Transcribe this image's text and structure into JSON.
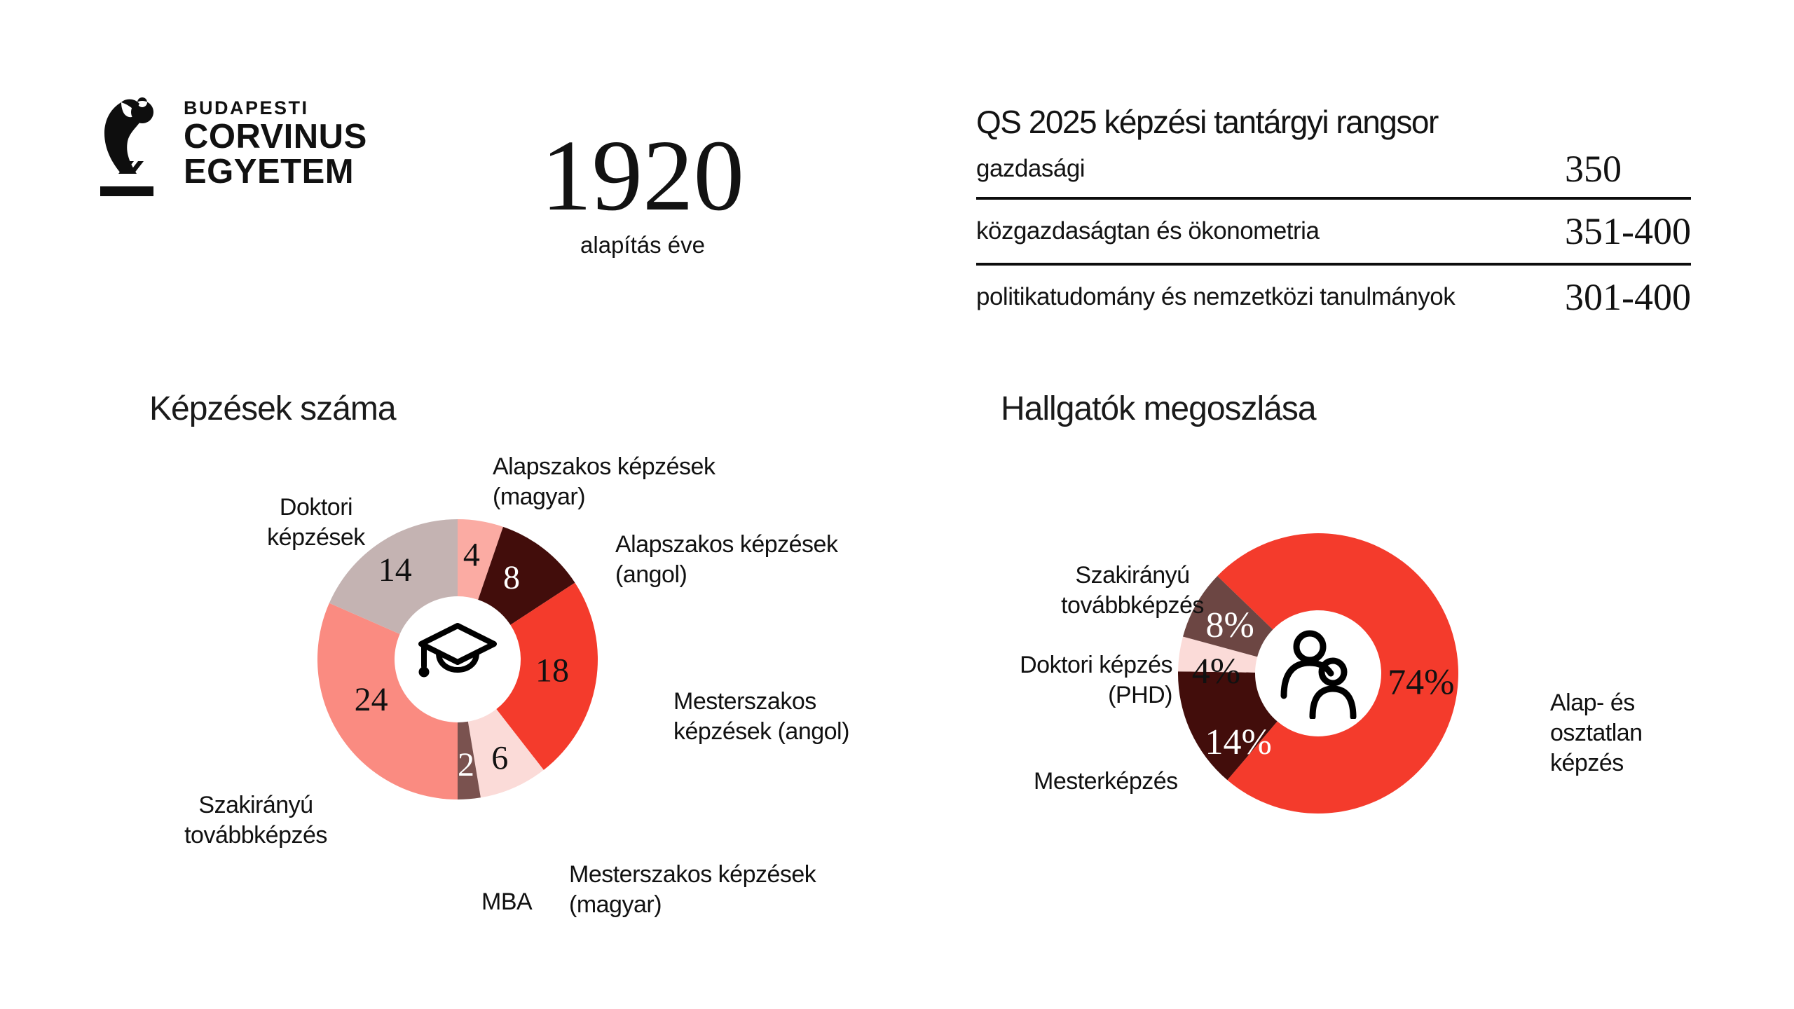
{
  "brand": {
    "word1": "BUDAPESTI",
    "word2": "CORVINUS",
    "word3": "EGYETEM"
  },
  "founding": {
    "year": "1920",
    "caption": "alapítás éve"
  },
  "qs_ranking": {
    "title": "QS 2025 képzési tantárgyi rangsor",
    "rows": [
      {
        "label": "gazdasági",
        "value": "350"
      },
      {
        "label": "közgazdaságtan és ökonometria",
        "value": "351-400"
      },
      {
        "label": "politikatudomány és nemzetközi tanulmányok",
        "value": "301-400"
      }
    ]
  },
  "colors": {
    "red": "#F43B2C",
    "dark_maroon": "#420D0B",
    "pale_pink": "#FBDBD8",
    "light_salmon": "#FBABA3",
    "salmon": "#FA8B81",
    "taupe": "#C4B3B2",
    "mba_brown": "#7A524F",
    "dark_brown": "#6C4643",
    "text": "#111111",
    "white": "#FFFFFF"
  },
  "chart_data": [
    {
      "type": "pie",
      "subtype": "donut",
      "title": "Képzések száma",
      "center_icon": "graduation-cap",
      "start_angle": 0,
      "direction": "clockwise",
      "total": 76,
      "segments": [
        {
          "label": "Alapszakos képzések (magyar)",
          "label_lines": [
            "Alapszakos képzések",
            "(magyar)"
          ],
          "value": 4,
          "display": "4",
          "color": "#FBABA3",
          "value_color": "#111111"
        },
        {
          "label": "Alapszakos képzések (angol)",
          "label_lines": [
            "Alapszakos képzések",
            "(angol)"
          ],
          "value": 8,
          "display": "8",
          "color": "#420D0B",
          "value_color": "#FFFFFF"
        },
        {
          "label": "Mesterszakos képzések (angol)",
          "label_lines": [
            "Mesterszakos",
            "képzések (angol)"
          ],
          "value": 18,
          "display": "18",
          "color": "#F43B2C",
          "value_color": "#111111"
        },
        {
          "label": "Mesterszakos képzések (magyar)",
          "label_lines": [
            "Mesterszakos képzések",
            "(magyar)"
          ],
          "value": 6,
          "display": "6",
          "color": "#FBDBD8",
          "value_color": "#111111"
        },
        {
          "label": "MBA",
          "label_lines": [
            "MBA"
          ],
          "value": 2,
          "display": "2",
          "color": "#7A524F",
          "value_color": "#FFFFFF"
        },
        {
          "label": "Szakirányú továbbképzés",
          "label_lines": [
            "Szakirányú",
            "továbbképzés"
          ],
          "value": 24,
          "display": "24",
          "color": "#FA8B81",
          "value_color": "#111111"
        },
        {
          "label": "Doktori képzések",
          "label_lines": [
            "Doktori",
            "képzések"
          ],
          "value": 14,
          "display": "14",
          "color": "#C4B3B2",
          "value_color": "#111111"
        }
      ]
    },
    {
      "type": "pie",
      "subtype": "donut",
      "title": "Hallgatók megoszlása",
      "center_icon": "people",
      "start_angle": -46,
      "direction": "clockwise",
      "total": 100,
      "segments": [
        {
          "label": "Alap- és osztatlan képzés",
          "label_lines": [
            "Alap- és",
            "osztatlan",
            "képzés"
          ],
          "value": 74,
          "display": "74%",
          "color": "#F43B2C",
          "value_color": "#111111"
        },
        {
          "label": "Mesterképzés",
          "label_lines": [
            "Mesterképzés"
          ],
          "value": 14,
          "display": "14%",
          "color": "#420D0B",
          "value_color": "#FFFFFF"
        },
        {
          "label": "Doktori képzés (PHD)",
          "label_lines": [
            "Doktori képzés",
            "(PHD)"
          ],
          "value": 4,
          "display": "4%",
          "color": "#FBDBD8",
          "value_color": "#111111"
        },
        {
          "label": "Szakirányú továbbképzés",
          "label_lines": [
            "Szakirányú",
            "továbbképzés"
          ],
          "value": 8,
          "display": "8%",
          "color": "#6C4643",
          "value_color": "#FFFFFF"
        }
      ]
    }
  ]
}
